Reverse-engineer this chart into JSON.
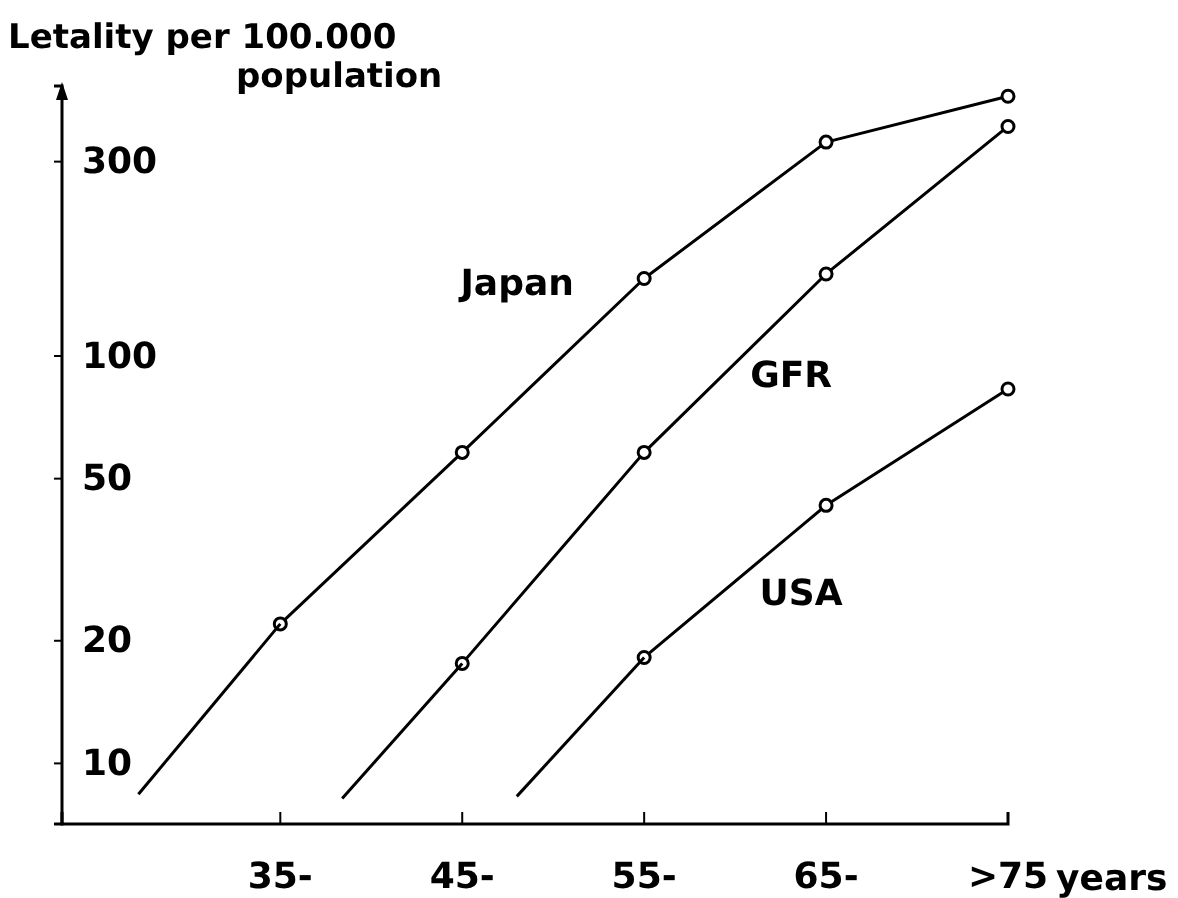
{
  "chart_data": {
    "type": "line",
    "ylabel": "Letality per 100.000\npopulation",
    "xlabel": "years",
    "log": "y",
    "marker": "circle",
    "line_style": "solid",
    "grid": false,
    "xlim": [
      23,
      75
    ],
    "xticks": [
      {
        "value": 35,
        "label": "35-"
      },
      {
        "value": 45,
        "label": "45-"
      },
      {
        "value": 55,
        "label": "55-"
      },
      {
        "value": 65,
        "label": "65-"
      },
      {
        "value": 75,
        "label": ">75"
      }
    ],
    "ylim": [
      7.1,
      460
    ],
    "yticks": [
      10,
      20,
      50,
      100,
      300
    ],
    "series": [
      {
        "name": "Japan",
        "color": "#000000",
        "x": [
          35,
          45,
          55,
          65,
          75
        ],
        "values": [
          22,
          58,
          155,
          335,
          434
        ]
      },
      {
        "name": "GFR",
        "color": "#000000",
        "x": [
          45,
          55,
          65,
          75
        ],
        "values": [
          17.6,
          58,
          159,
          366
        ]
      },
      {
        "name": "USA",
        "color": "#000000",
        "x": [
          55,
          65,
          75
        ],
        "values": [
          18.2,
          43,
          83
        ]
      },
      {
        "color": "#000000",
        "marker": "none",
        "x": [
          27.2,
          35
        ],
        "values": [
          8.4,
          22
        ]
      },
      {
        "color": "#000000",
        "marker": "none",
        "x": [
          38.4,
          45
        ],
        "values": [
          8.2,
          17.6
        ]
      },
      {
        "color": "#000000",
        "marker": "none",
        "x": [
          48,
          55
        ],
        "values": [
          8.3,
          18.2
        ]
      }
    ]
  }
}
